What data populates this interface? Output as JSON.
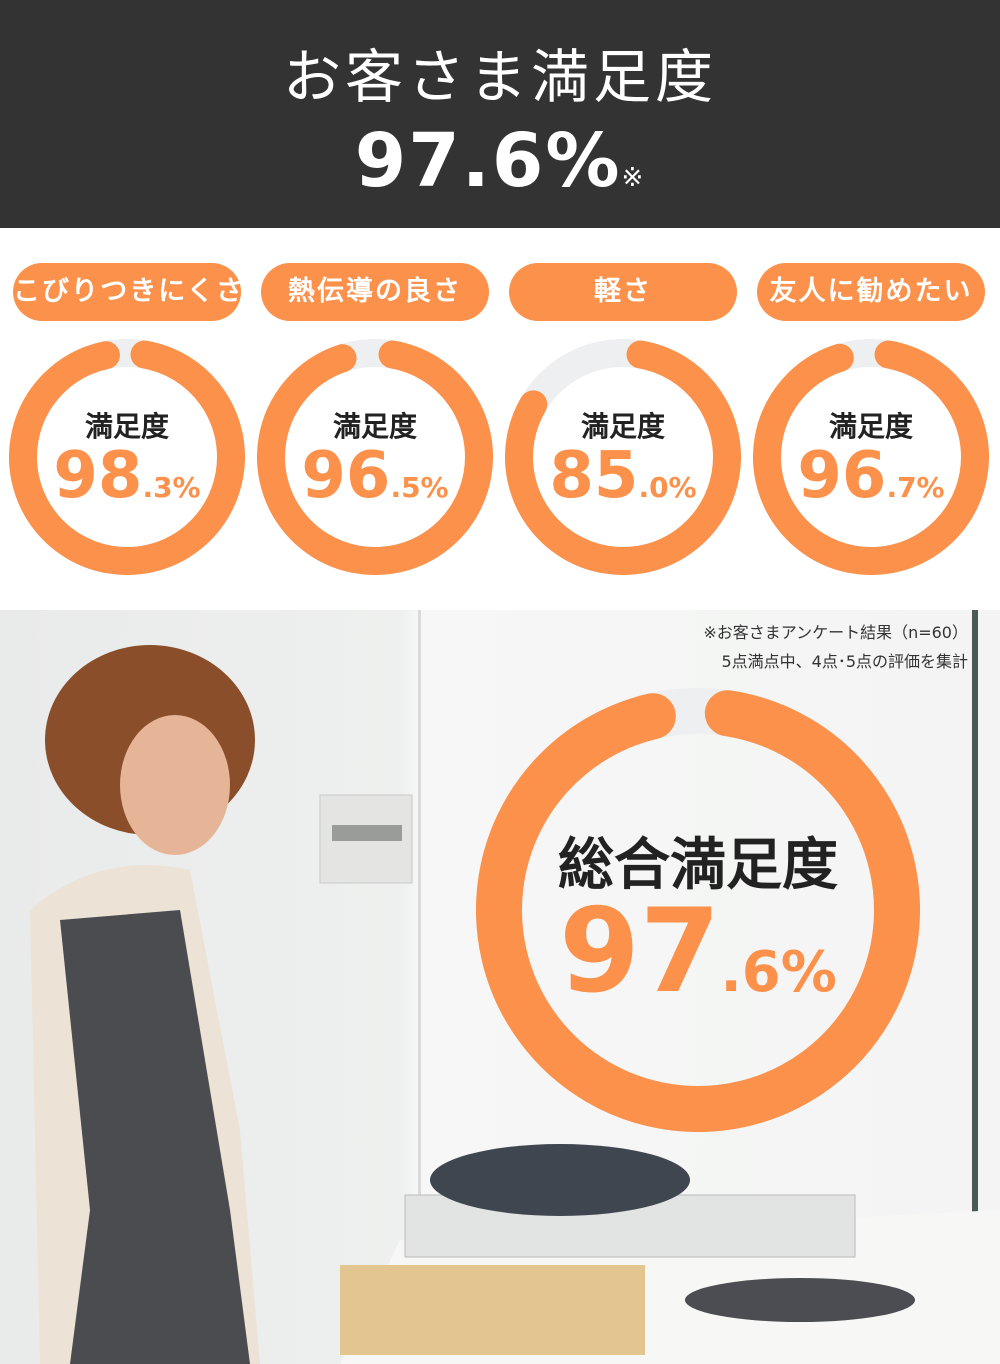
{
  "header": {
    "title": "お客さま満足度",
    "value": "97.6%",
    "note_mark": "※"
  },
  "colors": {
    "accent": "#fb914b",
    "track": "#eeeff0",
    "header_bg": "#333333"
  },
  "categories": [
    {
      "label": "こびりつきにくさ",
      "caption": "満足度",
      "int": "98",
      "dec": ".3%",
      "value": 98.3
    },
    {
      "label": "熱伝導の良さ",
      "caption": "満足度",
      "int": "96",
      "dec": ".5%",
      "value": 96.5
    },
    {
      "label": "軽さ",
      "caption": "満足度",
      "int": "85",
      "dec": ".0%",
      "value": 85.0
    },
    {
      "label": "友人に勧めたい",
      "caption": "満足度",
      "int": "96",
      "dec": ".7%",
      "value": 96.7
    }
  ],
  "note": {
    "line1": "※お客さまアンケート結果（n=60）",
    "line2": "5点満点中、4点･5点の評価を集計"
  },
  "overall": {
    "caption": "総合満足度",
    "int": "97",
    "dec": ".6%",
    "value": 97.6
  }
}
